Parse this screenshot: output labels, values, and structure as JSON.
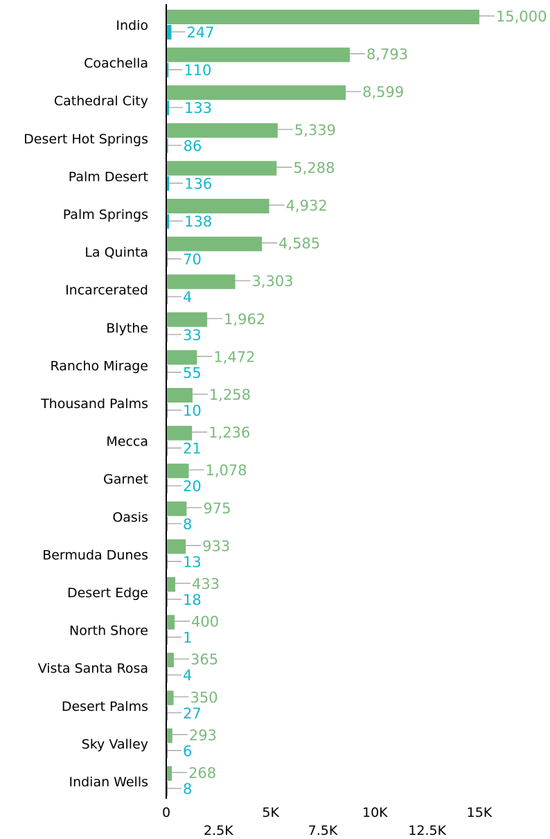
{
  "chart_data": {
    "type": "bar",
    "orientation": "horizontal",
    "categories": [
      "Indio",
      "Coachella",
      "Cathedral City",
      "Desert Hot Springs",
      "Palm Desert",
      "Palm Springs",
      "La Quinta",
      "Incarcerated",
      "Blythe",
      "Rancho Mirage",
      "Thousand Palms",
      "Mecca",
      "Garnet",
      "Oasis",
      "Bermuda Dunes",
      "Desert Edge",
      "North Shore",
      "Vista Santa Rosa",
      "Desert Palms",
      "Sky Valley",
      "Indian Wells"
    ],
    "series": [
      {
        "color": "#7aba7a",
        "values": [
          15000,
          8793,
          8599,
          5339,
          5288,
          4932,
          4585,
          3303,
          1962,
          1472,
          1258,
          1236,
          1078,
          975,
          933,
          433,
          400,
          365,
          350,
          293,
          268
        ],
        "labels": [
          "15,000",
          "8,793",
          "8,599",
          "5,339",
          "5,288",
          "4,932",
          "4,585",
          "3,303",
          "1,962",
          "1,472",
          "1,258",
          "1,236",
          "1,078",
          "975",
          "933",
          "433",
          "400",
          "365",
          "350",
          "293",
          "268"
        ]
      },
      {
        "color": "#11b8cc",
        "values": [
          247,
          110,
          133,
          86,
          136,
          138,
          70,
          4,
          33,
          55,
          10,
          21,
          20,
          8,
          13,
          18,
          1,
          4,
          27,
          6,
          8
        ],
        "labels": [
          "247",
          "110",
          "133",
          "86",
          "136",
          "138",
          "70",
          "4",
          "33",
          "55",
          "10",
          "21",
          "20",
          "8",
          "13",
          "18",
          "1",
          "4",
          "27",
          "6",
          "8"
        ]
      }
    ],
    "xlim": [
      0,
      15000
    ],
    "xticks": [
      {
        "value": 0,
        "label": "0",
        "row": 1
      },
      {
        "value": 2500,
        "label": "2.5K",
        "row": 2
      },
      {
        "value": 5000,
        "label": "5K",
        "row": 1
      },
      {
        "value": 7500,
        "label": "7.5K",
        "row": 2
      },
      {
        "value": 10000,
        "label": "10K",
        "row": 1
      },
      {
        "value": 12500,
        "label": "12.5K",
        "row": 2
      },
      {
        "value": 15000,
        "label": "15K",
        "row": 1
      }
    ],
    "grid": false,
    "legend": "none"
  }
}
